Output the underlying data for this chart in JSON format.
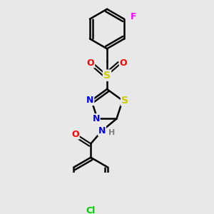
{
  "background_color": "#e8e8e8",
  "bond_color": "#000000",
  "line_width": 1.8,
  "colors": {
    "N": "#0000ff",
    "O": "#ff0000",
    "S": "#cccc00",
    "Cl": "#00cc00",
    "F": "#ff00ff",
    "H": "#808080"
  },
  "figsize": [
    3.0,
    3.0
  ],
  "dpi": 100
}
